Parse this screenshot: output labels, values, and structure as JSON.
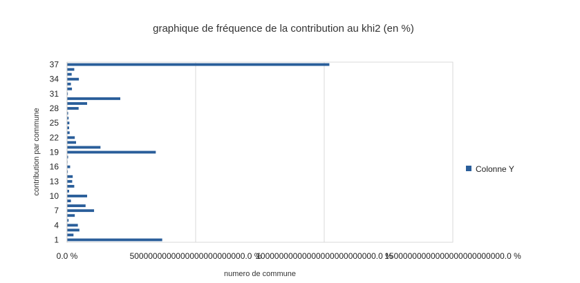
{
  "chart_data": {
    "type": "bar",
    "orientation": "horizontal",
    "title": "graphique de fréquence de la contribution au khi2 (en %)",
    "xlabel": "numero de commune",
    "ylabel": "contribution par commune",
    "x_tick_labels": [
      "0.0 %",
      "5000000000000000000000000.0 %",
      "10000000000000000000000000.0 %",
      "15000000000000000000000000.0 %"
    ],
    "x_ticks": [
      0,
      5000000000000000000000000,
      10000000000000000000000000,
      15000000000000000000000000
    ],
    "xlim": [
      0,
      15000000000000000000000000
    ],
    "y_tick_labels": [
      "1",
      "4",
      "7",
      "10",
      "13",
      "16",
      "19",
      "22",
      "25",
      "28",
      "31",
      "34",
      "37"
    ],
    "categories": [
      1,
      2,
      3,
      4,
      5,
      6,
      7,
      8,
      9,
      10,
      11,
      12,
      13,
      14,
      15,
      16,
      17,
      18,
      19,
      20,
      21,
      22,
      23,
      24,
      25,
      26,
      27,
      28,
      29,
      30,
      31,
      32,
      33,
      34,
      35,
      36,
      37
    ],
    "series": [
      {
        "name": "Colonne Y",
        "color": "#2a5e9a",
        "values": [
          3700000000000000000000000,
          250000000000000000000000,
          480000000000000000000000,
          420000000000000000000000,
          60000000000000000000000,
          300000000000000000000000,
          1050000000000000000000000,
          720000000000000000000000,
          150000000000000000000000,
          780000000000000000000000,
          80000000000000000000000,
          280000000000000000000000,
          200000000000000000000000,
          220000000000000000000000,
          30000000000000000000000,
          120000000000000000000000,
          20000000000000000000000,
          40000000000000000000000,
          3450000000000000000000000,
          1300000000000000000000000,
          350000000000000000000000,
          300000000000000000000000,
          100000000000000000000000,
          80000000000000000000000,
          90000000000000000000000,
          60000000000000000000000,
          40000000000000000000000,
          450000000000000000000000,
          780000000000000000000000,
          2070000000000000000000000,
          30000000000000000000000,
          190000000000000000000000,
          150000000000000000000000,
          460000000000000000000000,
          180000000000000000000000,
          280000000000000000000000,
          10200000000000000000000000
        ]
      }
    ],
    "grid": "vertical",
    "legend_position": "right"
  }
}
